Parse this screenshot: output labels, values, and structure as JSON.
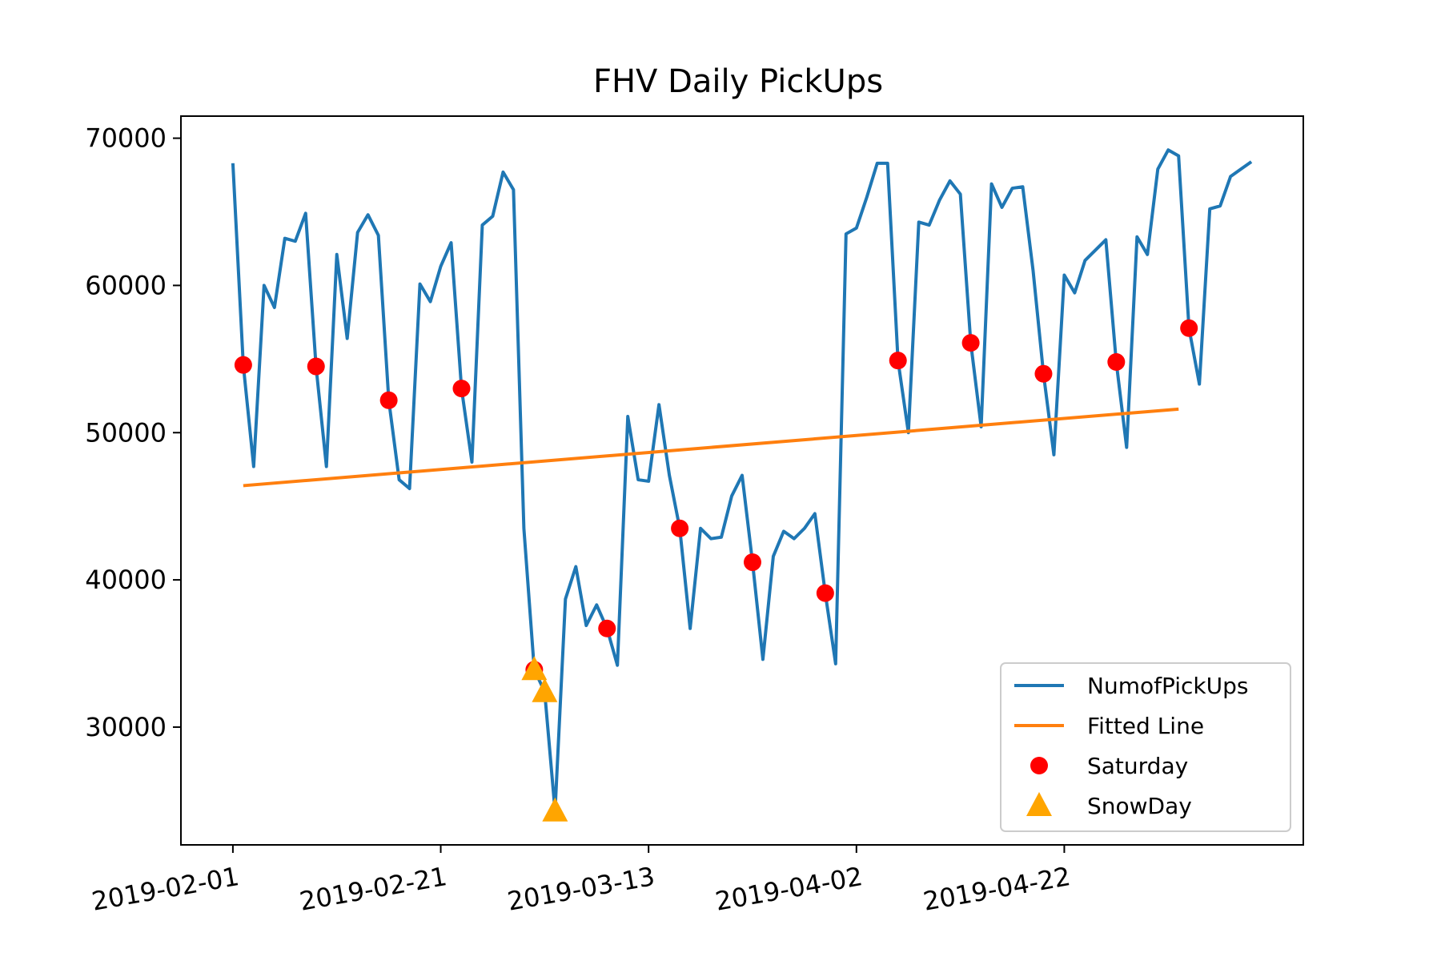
{
  "chart_data": {
    "type": "line",
    "title": "FHV Daily PickUps",
    "xlabel": "",
    "ylabel": "",
    "x_start": "2019-02-01",
    "x_end": "2019-05-10",
    "xlim": [
      "2019-01-27",
      "2019-05-15"
    ],
    "ylim": [
      22000,
      71500
    ],
    "x_ticks": [
      "2019-02-01",
      "2019-02-21",
      "2019-03-13",
      "2019-04-02",
      "2019-04-22"
    ],
    "y_ticks": [
      30000,
      40000,
      50000,
      60000,
      70000
    ],
    "grid": false,
    "legend_position": "lower right",
    "legend": [
      "NumofPickUps",
      "Fitted Line",
      "Saturday",
      "SnowDay"
    ],
    "colors": {
      "line": "#1f77b4",
      "fit": "#ff7f0e",
      "saturday": "#ff0000",
      "snow": "#ffa500"
    },
    "series": [
      {
        "name": "NumofPickUps",
        "values": [
          68300,
          54600,
          47700,
          60000,
          58500,
          63200,
          63000,
          64900,
          54500,
          47700,
          62100,
          56400,
          63600,
          64800,
          63400,
          52200,
          46800,
          46200,
          60100,
          58900,
          61300,
          62900,
          53000,
          48000,
          64100,
          64700,
          67700,
          66500,
          43500,
          33900,
          32400,
          24300,
          38700,
          40900,
          36900,
          38300,
          36700,
          34200,
          51100,
          46800,
          46700,
          51900,
          47100,
          43500,
          36700,
          43500,
          42800,
          42900,
          45700,
          47100,
          41200,
          34600,
          41600,
          43300,
          42800,
          43500,
          44500,
          39100,
          34300,
          63500,
          63900,
          66000,
          68300,
          68300,
          54900,
          50000,
          64300,
          64100,
          65800,
          67100,
          66200,
          56100,
          50400,
          66900,
          65300,
          66600,
          66700,
          61000,
          54000,
          48500,
          60700,
          59500,
          61700,
          62400,
          63100,
          54800,
          49000,
          63300,
          62100,
          67900,
          69200,
          68800,
          57100,
          53300,
          65200,
          65400,
          67400,
          67900,
          68400
        ]
      },
      {
        "name": "Fitted Line",
        "start": "2019-02-02",
        "end": "2019-05-03",
        "y_start": 46400,
        "y_end": 51600
      },
      {
        "name": "Saturday",
        "x": [
          "2019-02-02",
          "2019-02-09",
          "2019-02-16",
          "2019-02-23",
          "2019-03-02",
          "2019-03-09",
          "2019-03-16",
          "2019-03-23",
          "2019-03-30",
          "2019-04-06",
          "2019-04-13",
          "2019-04-20",
          "2019-04-27",
          "2019-05-04"
        ],
        "values": [
          54600,
          54500,
          52200,
          53000,
          33900,
          36700,
          43500,
          41200,
          39100,
          54900,
          56100,
          54000,
          54800,
          57100
        ]
      },
      {
        "name": "SnowDay",
        "x": [
          "2019-03-02",
          "2019-03-03",
          "2019-03-04"
        ],
        "values": [
          33900,
          32400,
          24300
        ]
      }
    ]
  }
}
